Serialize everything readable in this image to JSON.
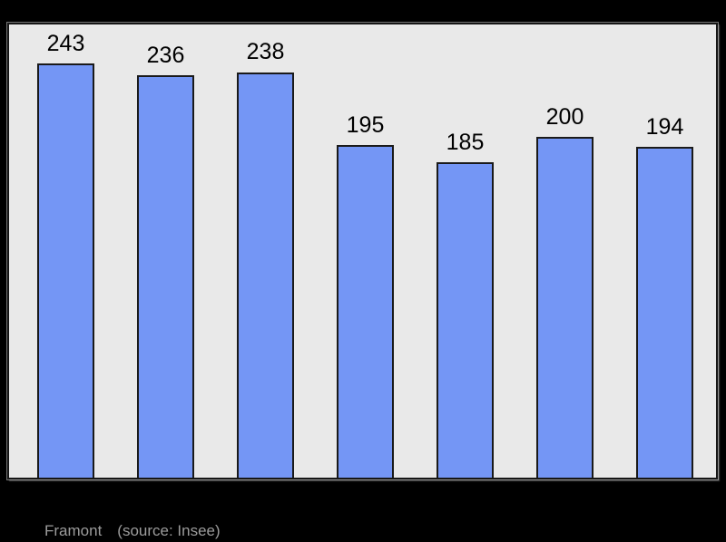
{
  "page": {
    "background_color": "#000000"
  },
  "chart_data": {
    "type": "bar",
    "title": "",
    "xlabel": "",
    "ylabel": "",
    "categories": [
      "",
      "",
      "",
      "",
      "",
      "",
      ""
    ],
    "values": [
      243,
      236,
      238,
      195,
      185,
      200,
      194
    ],
    "value_labels": [
      "243",
      "236",
      "238",
      "195",
      "185",
      "200",
      "194"
    ],
    "ylim": [
      0,
      266
    ],
    "grid": false,
    "legend": false,
    "axes_visible": false,
    "plot_background": "#e9e9e9",
    "bar_color": "#7496f5",
    "bar_border_color": "#1a1a1a",
    "label_color": "#000000"
  },
  "caption": {
    "name": "Framont",
    "source": "(source: Insee)",
    "text_color": "#9c9c9c"
  }
}
